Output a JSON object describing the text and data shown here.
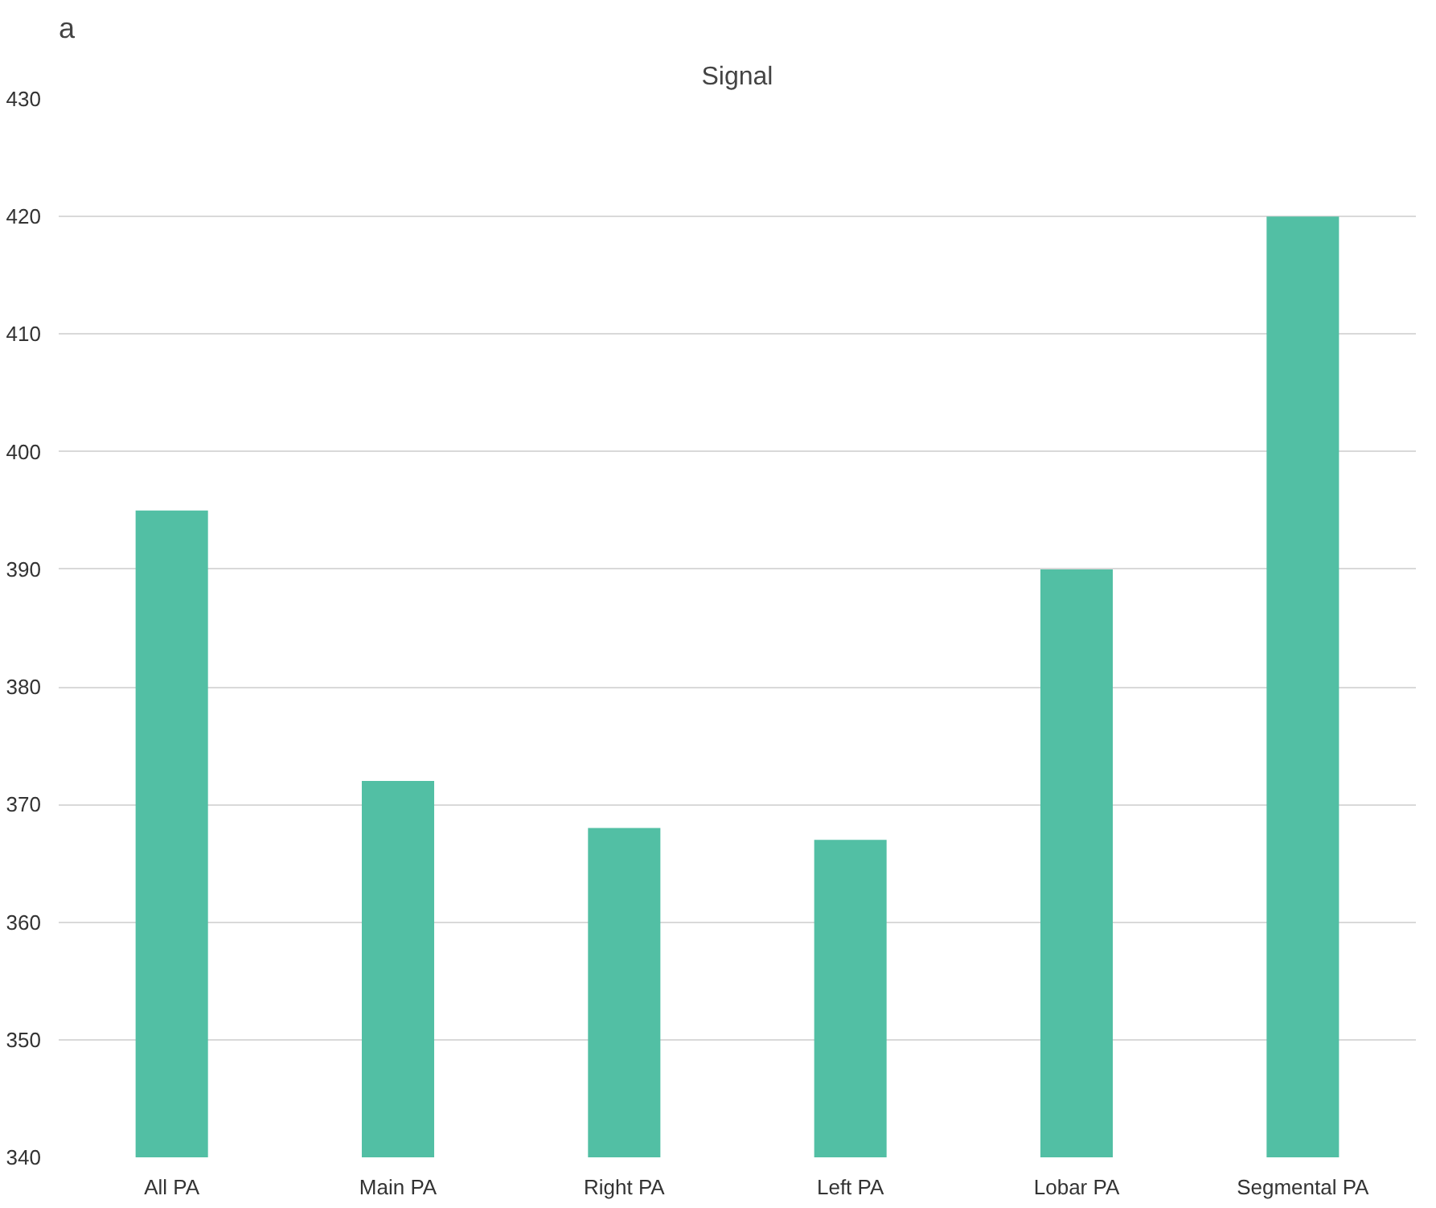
{
  "chart_data": {
    "type": "bar",
    "title": "Signal",
    "annotations": [
      "a"
    ],
    "categories": [
      "All PA",
      "Main PA",
      "Right PA",
      "Left PA",
      "Lobar PA",
      "Segmental PA"
    ],
    "values": [
      395,
      372,
      368,
      367,
      390,
      420
    ],
    "color": "#52bfa4",
    "ylim": [
      340,
      430
    ],
    "yticks": [
      340,
      350,
      360,
      370,
      380,
      390,
      400,
      410,
      420,
      430
    ],
    "grid": "y"
  }
}
